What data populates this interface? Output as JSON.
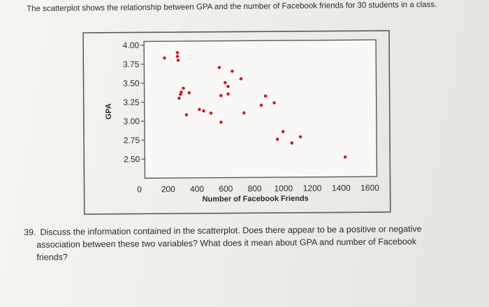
{
  "intro": {
    "text": "The scatterplot shows the relationship between GPA and the number of Facebook friends for 30 students in a class."
  },
  "question": {
    "number": "39.",
    "line1": "Discuss the information contained in the scatterplot. Does there appear to be a positive or negative",
    "line2": "association between these two variables? What does it mean about GPA and number of Facebook",
    "line3": "friends?"
  },
  "colors": {
    "point": "#c8202a",
    "frame": "#5a5a5a",
    "plot_bg": "#f9f8f6"
  },
  "chart_data": {
    "type": "scatter",
    "title": "",
    "xlabel": "Number of Facebook Friends",
    "ylabel": "GPA",
    "xlim": [
      0,
      1600
    ],
    "ylim": [
      2.25,
      4.05
    ],
    "x_ticks": [
      "0",
      "200",
      "400",
      "600",
      "800",
      "1000",
      "1200",
      "1400",
      "1600"
    ],
    "y_ticks": [
      "4.00",
      "3.75",
      "3.50",
      "3.25",
      "3.00",
      "2.75",
      "2.50"
    ],
    "grid": false,
    "legend": "none",
    "points": [
      {
        "x": 180,
        "y": 3.83
      },
      {
        "x": 270,
        "y": 3.9
      },
      {
        "x": 270,
        "y": 3.85
      },
      {
        "x": 275,
        "y": 3.8
      },
      {
        "x": 295,
        "y": 3.38
      },
      {
        "x": 290,
        "y": 3.35
      },
      {
        "x": 280,
        "y": 3.3
      },
      {
        "x": 310,
        "y": 3.43
      },
      {
        "x": 350,
        "y": 3.37
      },
      {
        "x": 330,
        "y": 3.08
      },
      {
        "x": 420,
        "y": 3.15
      },
      {
        "x": 450,
        "y": 3.13
      },
      {
        "x": 500,
        "y": 3.1
      },
      {
        "x": 570,
        "y": 2.98
      },
      {
        "x": 560,
        "y": 3.7
      },
      {
        "x": 600,
        "y": 3.5
      },
      {
        "x": 620,
        "y": 3.45
      },
      {
        "x": 570,
        "y": 3.33
      },
      {
        "x": 620,
        "y": 3.35
      },
      {
        "x": 650,
        "y": 3.65
      },
      {
        "x": 710,
        "y": 3.55
      },
      {
        "x": 730,
        "y": 3.1
      },
      {
        "x": 850,
        "y": 3.2
      },
      {
        "x": 880,
        "y": 3.32
      },
      {
        "x": 940,
        "y": 3.23
      },
      {
        "x": 960,
        "y": 2.75
      },
      {
        "x": 1000,
        "y": 2.85
      },
      {
        "x": 1060,
        "y": 2.7
      },
      {
        "x": 1120,
        "y": 2.78
      },
      {
        "x": 1430,
        "y": 2.51
      }
    ]
  }
}
